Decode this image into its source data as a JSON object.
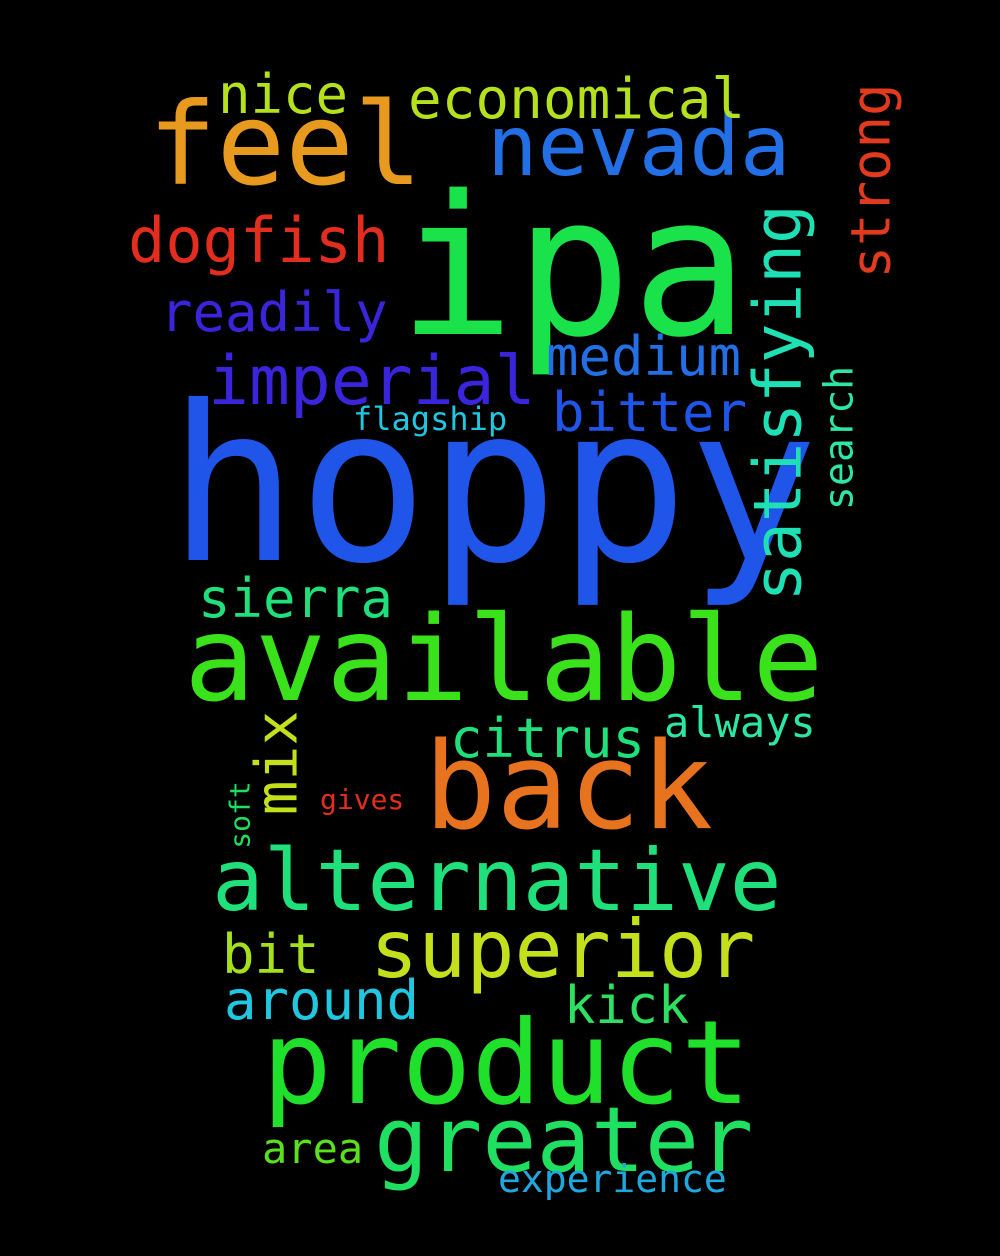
{
  "background": "#000000",
  "words": [
    {
      "text": "ipa",
      "color": "#19e24a",
      "orientation": "horizontal"
    },
    {
      "text": "hoppy",
      "color": "#1f55e8",
      "orientation": "horizontal"
    },
    {
      "text": "feel",
      "color": "#e89a1f",
      "orientation": "horizontal"
    },
    {
      "text": "nevada",
      "color": "#2370e6",
      "orientation": "horizontal"
    },
    {
      "text": "economical",
      "color": "#b4e01c",
      "orientation": "horizontal"
    },
    {
      "text": "nice",
      "color": "#b4e01c",
      "orientation": "horizontal"
    },
    {
      "text": "dogfish",
      "color": "#e22d1f",
      "orientation": "horizontal"
    },
    {
      "text": "readily",
      "color": "#3a25dd",
      "orientation": "horizontal"
    },
    {
      "text": "imperial",
      "color": "#3a25dd",
      "orientation": "horizontal"
    },
    {
      "text": "medium",
      "color": "#2370e6",
      "orientation": "horizontal"
    },
    {
      "text": "bitter",
      "color": "#1f55e8",
      "orientation": "horizontal"
    },
    {
      "text": "flagship",
      "color": "#1fc8e0",
      "orientation": "horizontal"
    },
    {
      "text": "strong",
      "color": "#e23a1f",
      "orientation": "vertical"
    },
    {
      "text": "satisfying",
      "color": "#1fe0b4",
      "orientation": "vertical"
    },
    {
      "text": "search",
      "color": "#2ee6a4",
      "orientation": "vertical"
    },
    {
      "text": "sierra",
      "color": "#1fe07a",
      "orientation": "horizontal"
    },
    {
      "text": "available",
      "color": "#3ae21c",
      "orientation": "horizontal"
    },
    {
      "text": "mix",
      "color": "#c4e01c",
      "orientation": "vertical"
    },
    {
      "text": "citrus",
      "color": "#1fe07a",
      "orientation": "horizontal"
    },
    {
      "text": "always",
      "color": "#2ee6a4",
      "orientation": "horizontal"
    },
    {
      "text": "back",
      "color": "#e8731f",
      "orientation": "horizontal"
    },
    {
      "text": "soft",
      "color": "#1fe05a",
      "orientation": "vertical"
    },
    {
      "text": "gives",
      "color": "#e22d1f",
      "orientation": "horizontal"
    },
    {
      "text": "alternative",
      "color": "#1fe07a",
      "orientation": "horizontal"
    },
    {
      "text": "bit",
      "color": "#a4e01c",
      "orientation": "horizontal"
    },
    {
      "text": "superior",
      "color": "#c4e01c",
      "orientation": "horizontal"
    },
    {
      "text": "around",
      "color": "#1fc8e0",
      "orientation": "horizontal"
    },
    {
      "text": "kick",
      "color": "#2ee060",
      "orientation": "horizontal"
    },
    {
      "text": "product",
      "color": "#1fe02a",
      "orientation": "horizontal"
    },
    {
      "text": "greater",
      "color": "#1fe060",
      "orientation": "horizontal"
    },
    {
      "text": "area",
      "color": "#5ae01c",
      "orientation": "horizontal"
    },
    {
      "text": "experience",
      "color": "#1fa8e0",
      "orientation": "horizontal"
    }
  ]
}
